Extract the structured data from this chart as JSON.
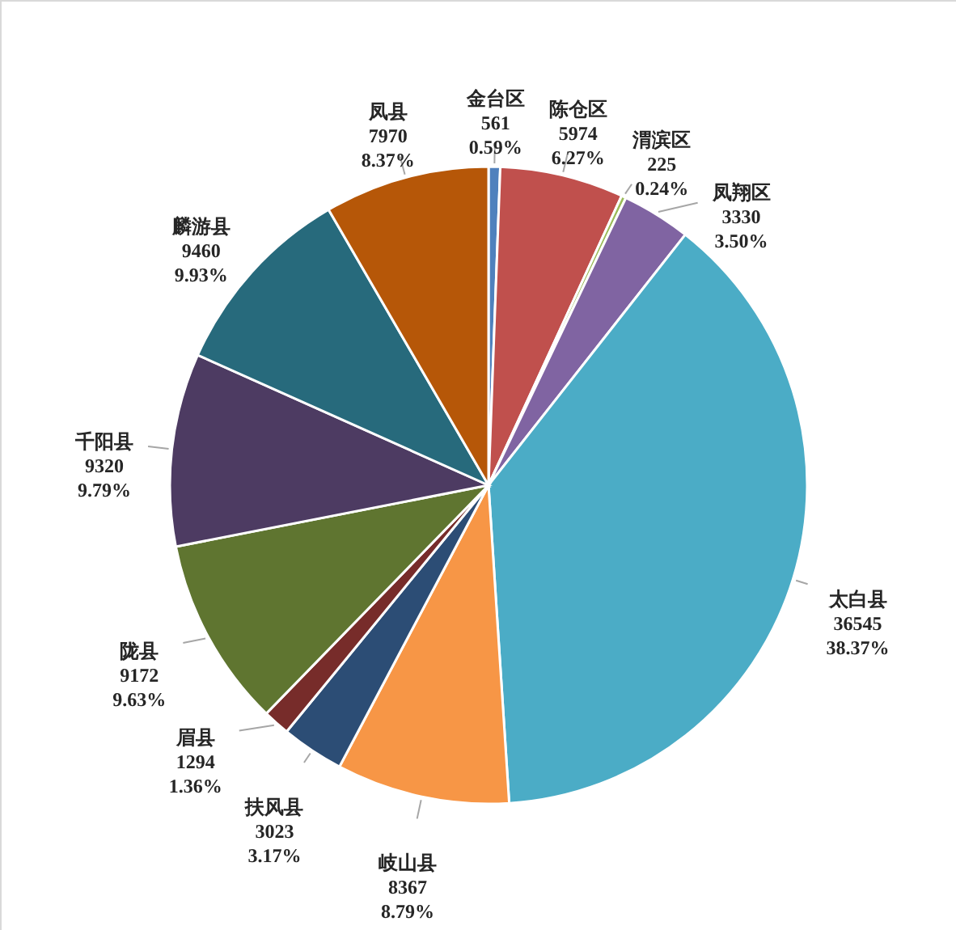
{
  "chart_data": {
    "type": "pie",
    "categories": [
      "金台区",
      "陈仓区",
      "渭滨区",
      "凤翔区",
      "太白县",
      "岐山县",
      "扶风县",
      "眉县",
      "陇县",
      "千阳县",
      "麟游县",
      "凤县"
    ],
    "values": [
      561,
      5974,
      225,
      3330,
      36545,
      8367,
      3023,
      1294,
      9172,
      9320,
      9460,
      7970
    ],
    "value_labels": [
      "561\n0.59%",
      "5974\n6.27%",
      "225\n0.24%",
      "3330\n3.50%",
      "36545\n38.37%",
      "8367\n8.79%",
      "3023\n3.17%",
      "1294\n1.36%",
      "9172\n9.63%",
      "9320\n9.79%",
      "9460\n9.93%",
      "7970\n8.37%"
    ],
    "colors": [
      "#4f81bd",
      "#c0504d",
      "#9bbb59",
      "#8064a2",
      "#4bacc6",
      "#f79646",
      "#2c4d75",
      "#772c2a",
      "#5f7530",
      "#4d3b62",
      "#276a7c",
      "#b65708"
    ]
  }
}
